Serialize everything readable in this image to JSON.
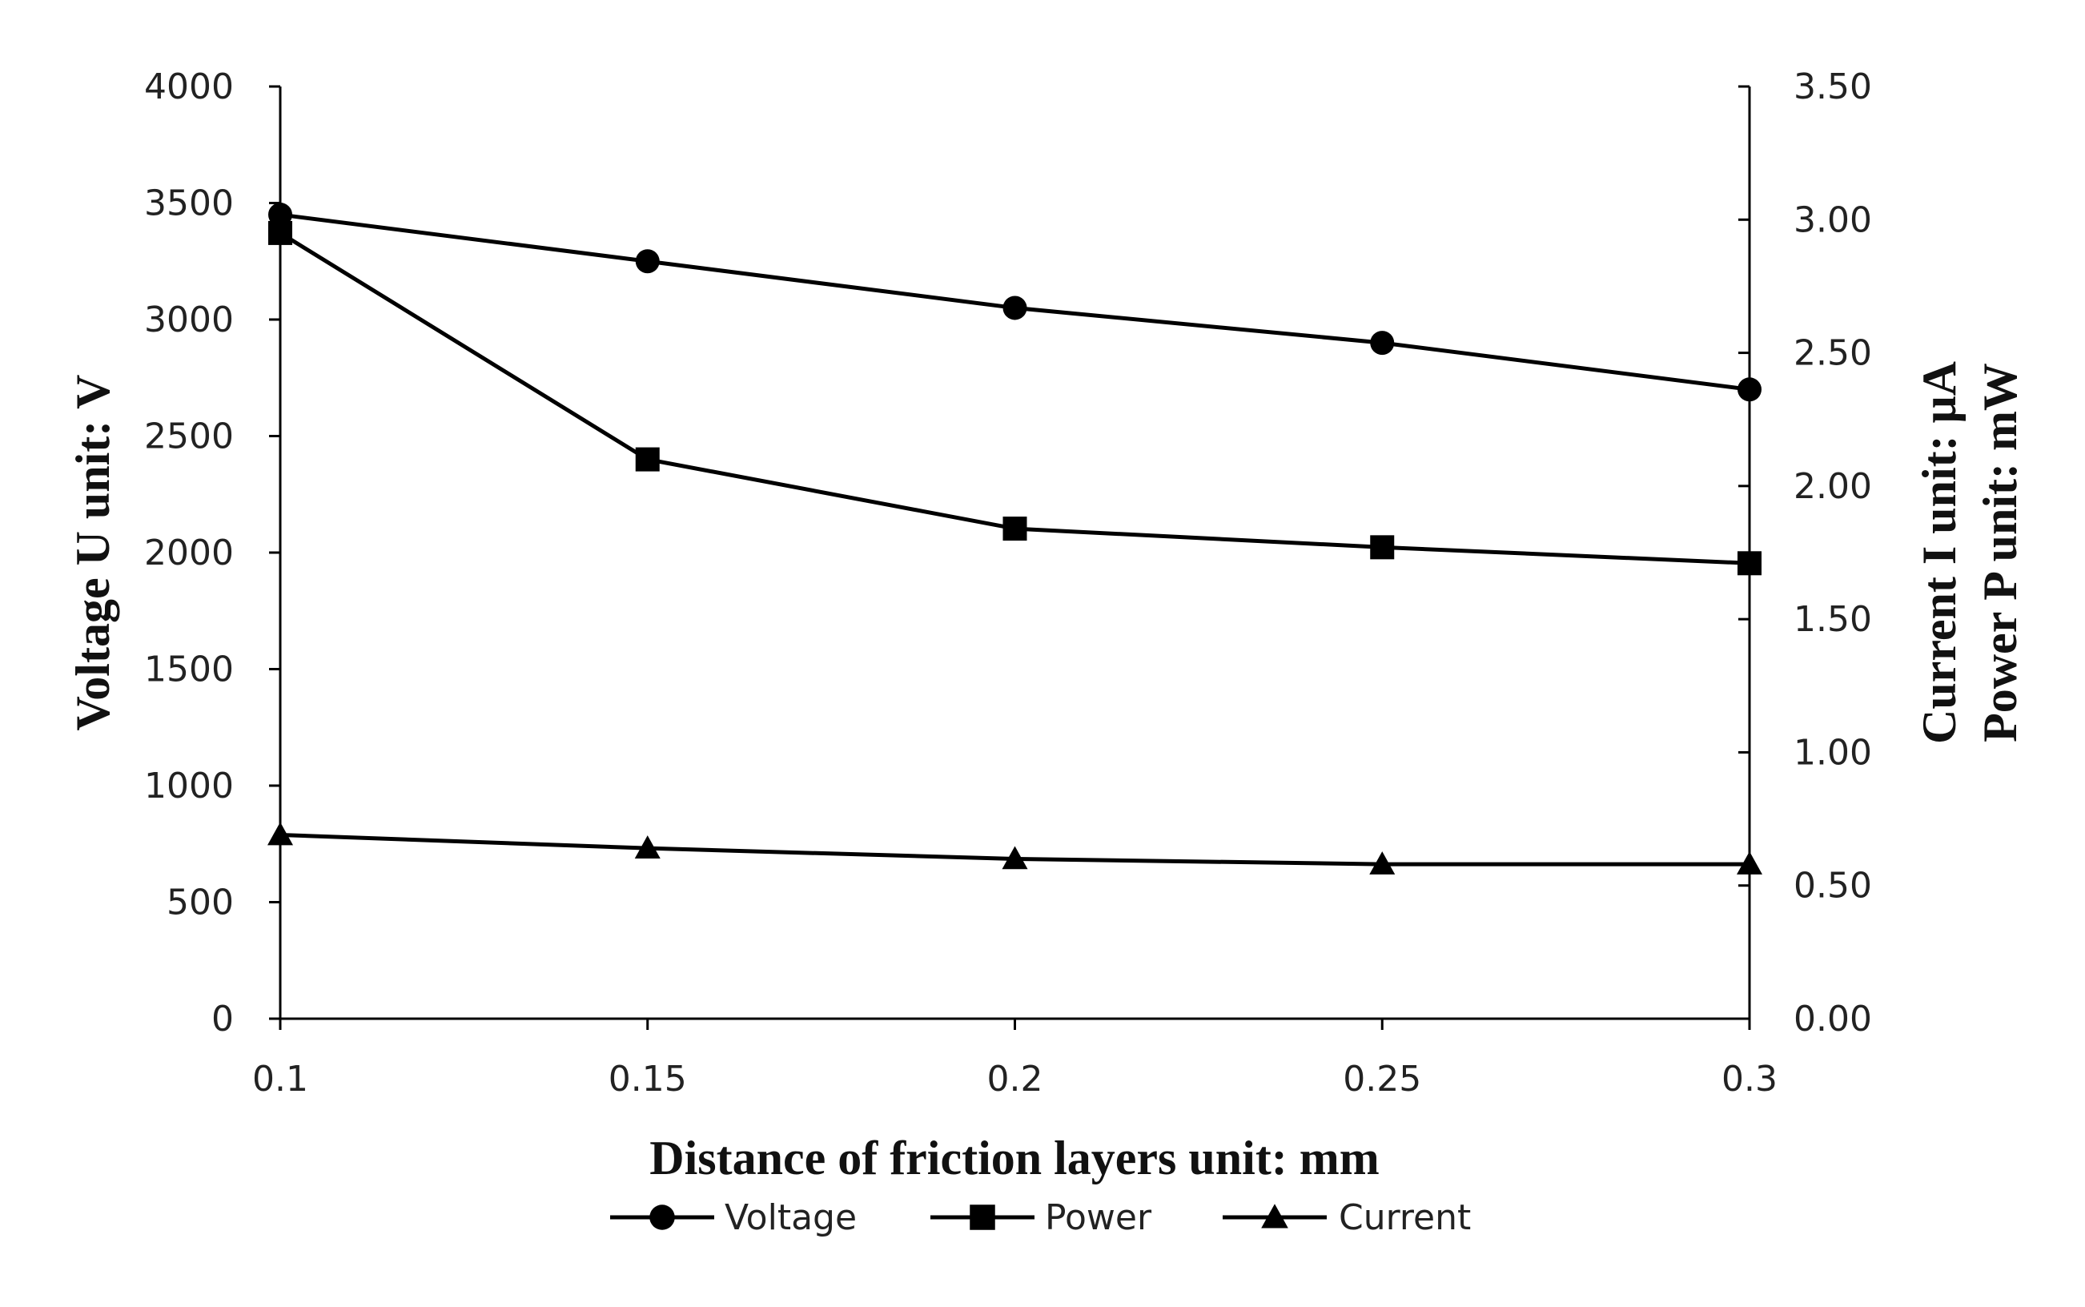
{
  "chart_data": {
    "type": "line",
    "x": [
      "0.1",
      "0.15",
      "0.2",
      "0.25",
      "0.3"
    ],
    "xlabel": "Distance of friction layers  unit: mm",
    "ylabel_left": "Voltage U  unit: V",
    "ylabel_right": [
      "Current I  unit: μA",
      "Power P  unit: mW"
    ],
    "ylim_left": [
      0,
      4000
    ],
    "ylim_right": [
      0,
      3.5
    ],
    "yticks_left": [
      "0",
      "500",
      "1000",
      "1500",
      "2000",
      "2500",
      "3000",
      "3500",
      "4000"
    ],
    "yticks_right": [
      "0.00",
      "0.50",
      "1.00",
      "1.50",
      "2.00",
      "2.50",
      "3.00",
      "3.50"
    ],
    "grid": false,
    "legend_position": "bottom",
    "series": [
      {
        "name": "Voltage",
        "axis": "left",
        "marker": "circle",
        "values": [
          3450,
          3250,
          3050,
          2900,
          2700
        ]
      },
      {
        "name": "Power",
        "axis": "right",
        "marker": "square",
        "values": [
          2.95,
          2.1,
          1.84,
          1.77,
          1.71
        ]
      },
      {
        "name": "Current",
        "axis": "right",
        "marker": "triangle",
        "values": [
          0.69,
          0.64,
          0.6,
          0.58,
          0.58
        ]
      }
    ],
    "line_color": "#000000"
  }
}
